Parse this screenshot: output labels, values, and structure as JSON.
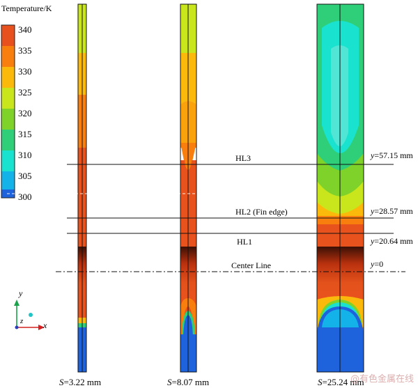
{
  "legend": {
    "title": "Temperature/K",
    "ticks": [
      "340",
      "335",
      "330",
      "325",
      "320",
      "315",
      "310",
      "305",
      "300"
    ],
    "colors": [
      "#e8501e",
      "#f87f0e",
      "#fbb90c",
      "#c9e61d",
      "#7fd22a",
      "#2fcf7a",
      "#19e2cf",
      "#13b3ea",
      "#1f63dc"
    ]
  },
  "lines": {
    "hl3": "HL3",
    "hl2": "HL2 (Fin edge)",
    "hl1": "HL1",
    "center": "Center Line"
  },
  "y_values": {
    "hl3": "=57.15 mm",
    "hl2": "=28.57 mm",
    "hl1": "=20.64 mm",
    "center": "=0"
  },
  "y_symbol": "y",
  "fins": [
    {
      "label_symbol": "S",
      "label_value": "=3.22 mm"
    },
    {
      "label_symbol": "S",
      "label_value": "=8.07 mm"
    },
    {
      "label_symbol": "S",
      "label_value": "=25.24 mm"
    }
  ],
  "axes": {
    "y": "y",
    "z": "z",
    "x": "x"
  },
  "watermark": "@有色金属在线"
}
